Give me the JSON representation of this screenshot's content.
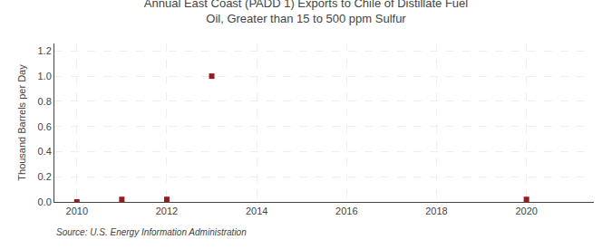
{
  "chart_data": {
    "type": "scatter",
    "title": "Annual East Coast (PADD 1) Exports to Chile of Distillate Fuel Oil, Greater than 15 to 500 ppm Sulfur",
    "y_label": "Thousand Barrels per Day",
    "annotations": [
      "Source: U.S. Energy Information Administration"
    ],
    "x": [
      2010,
      2011,
      2012,
      2013,
      2020
    ],
    "values": [
      0.0,
      0.02,
      0.02,
      1.0,
      0.02
    ],
    "color": "#9B1B1B",
    "marker": "square",
    "xlim": [
      2009.5,
      2021.5
    ],
    "xticks": [
      2010,
      2012,
      2014,
      2016,
      2018,
      2020
    ],
    "ylim": [
      0.0,
      1.26
    ],
    "yticks": [
      {
        "value": 0.0,
        "label": "0.0"
      },
      0.2,
      0.4,
      0.6,
      0.8,
      {
        "value": 1.0,
        "label": "1.0"
      },
      1.2
    ],
    "grid": true
  }
}
